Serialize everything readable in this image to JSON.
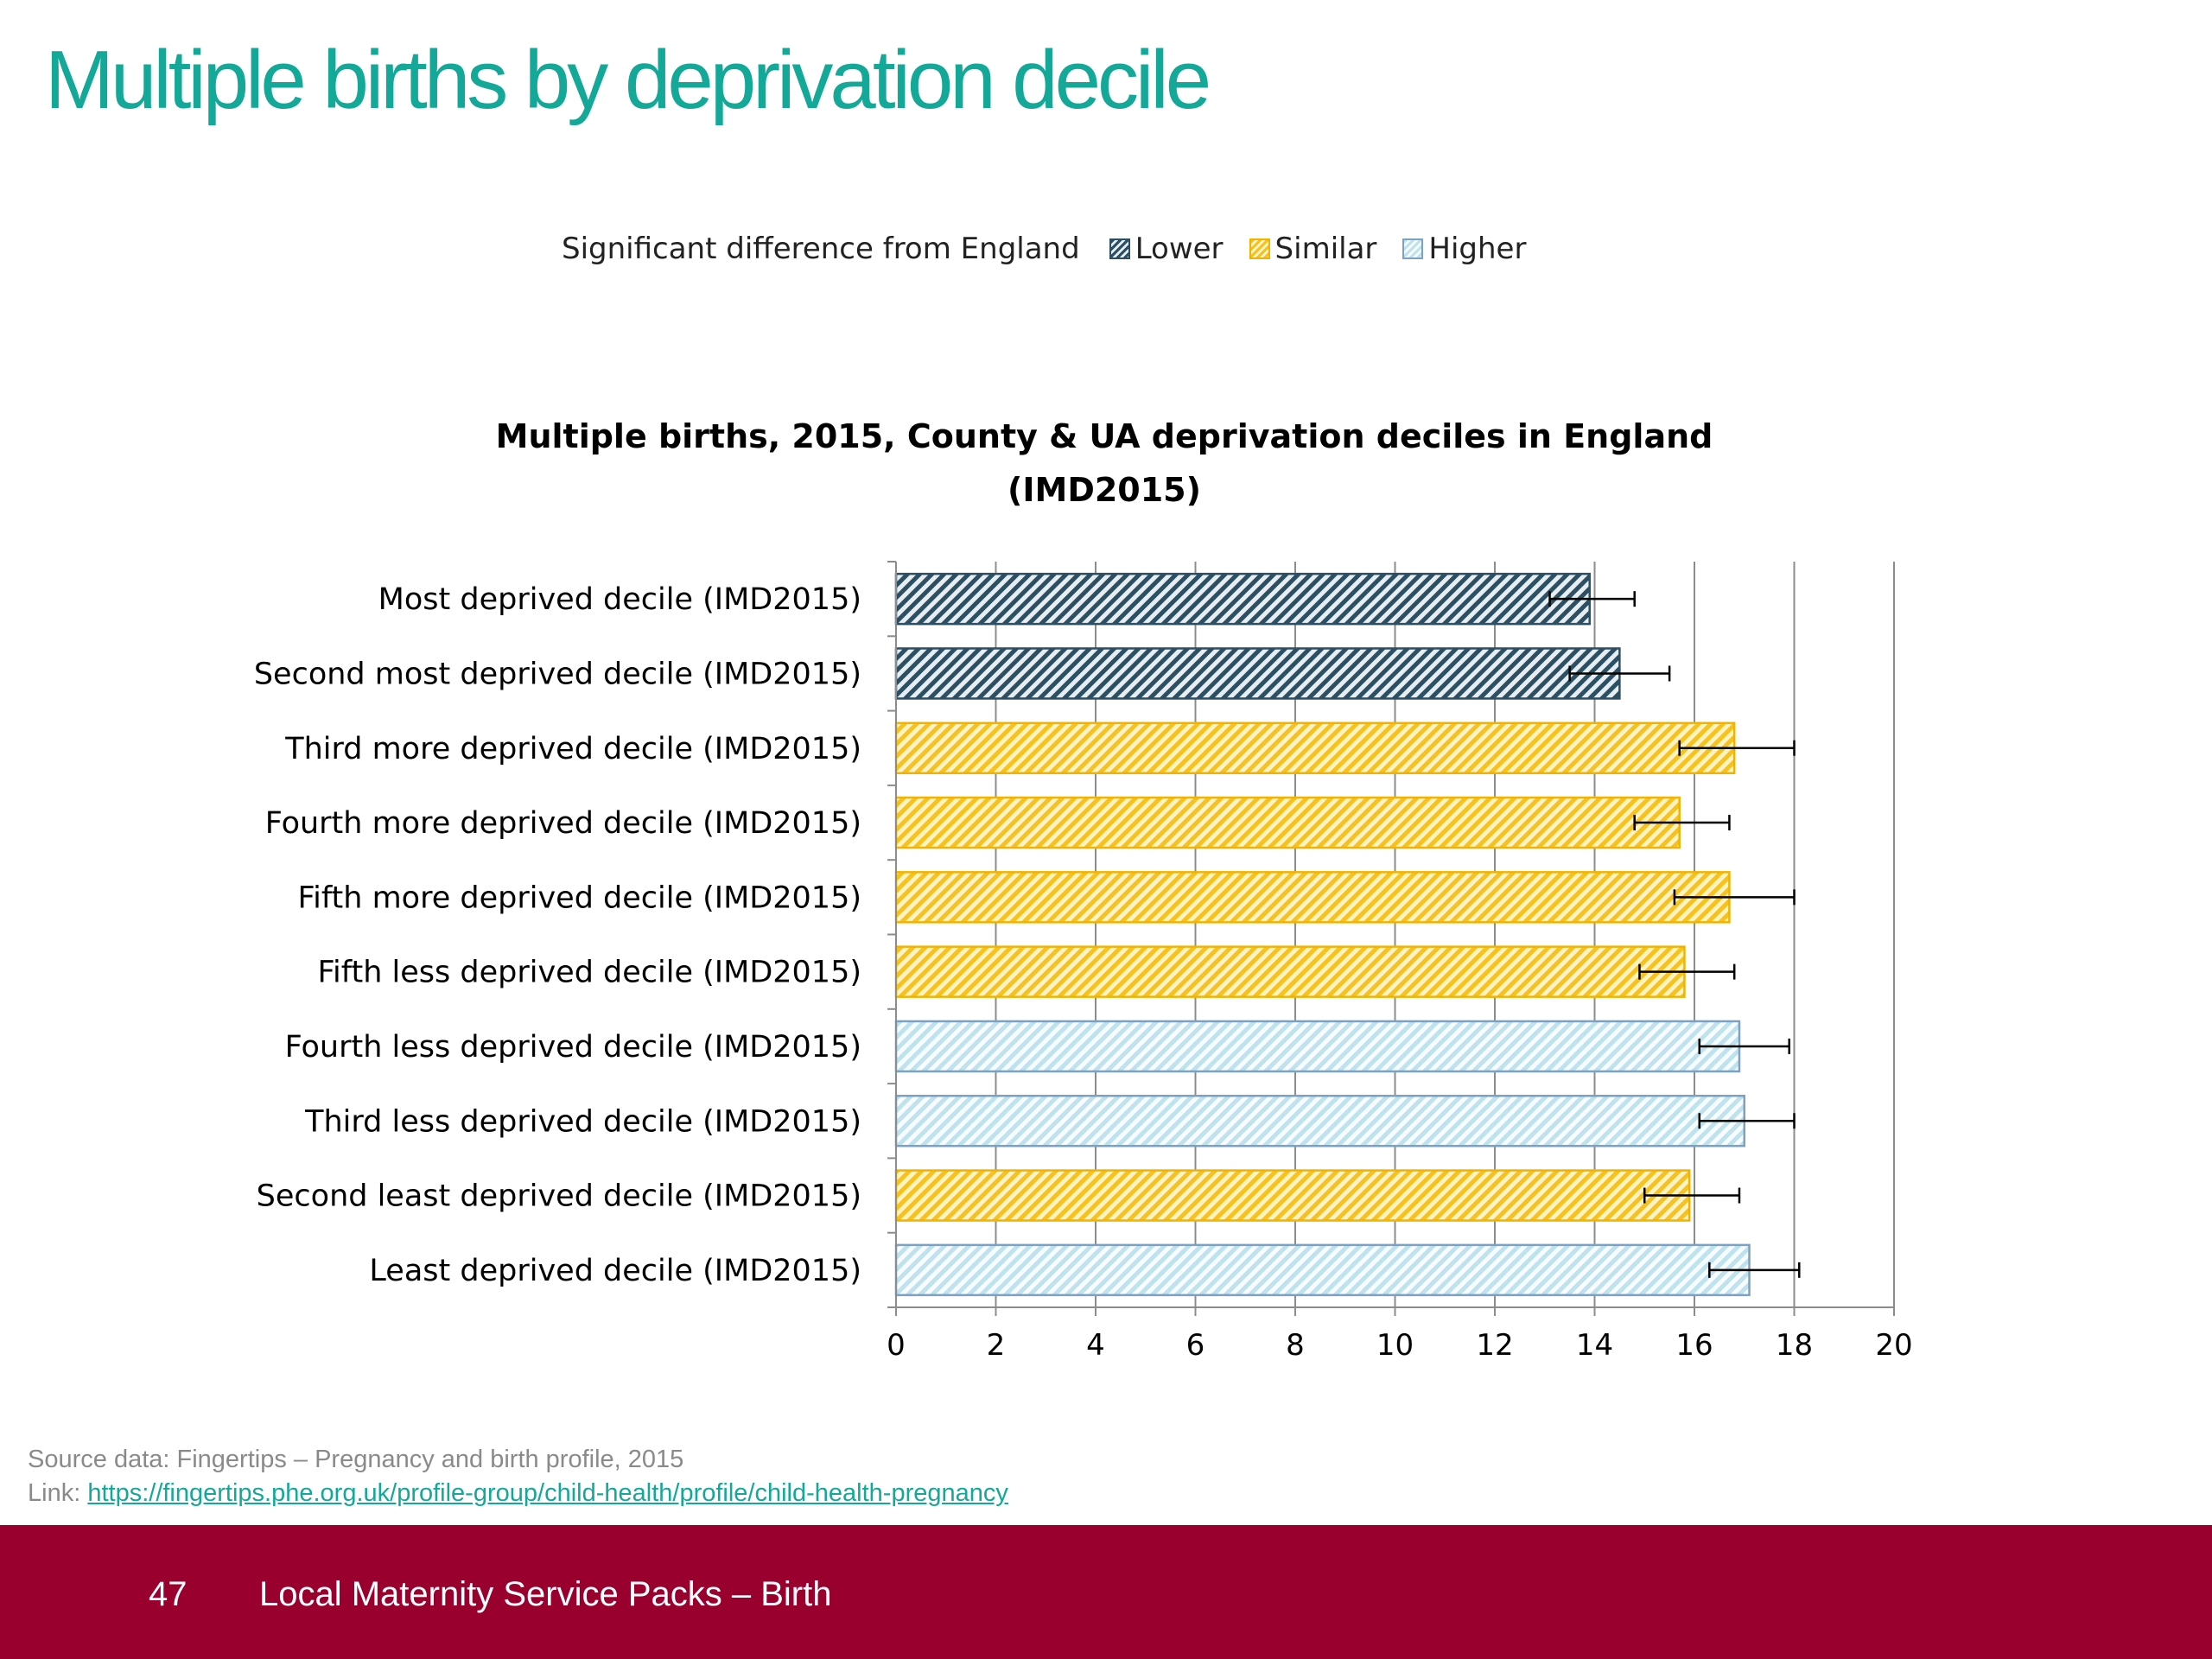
{
  "slide": {
    "title": "Multiple births by deprivation decile"
  },
  "legend": {
    "title": "Significant difference from England",
    "items": [
      {
        "label": "Lower",
        "key": "lower"
      },
      {
        "label": "Similar",
        "key": "similar"
      },
      {
        "label": "Higher",
        "key": "higher"
      }
    ]
  },
  "colors": {
    "lower": "#2c4f63",
    "similar": "#f6c21f",
    "higher": "#bfe2ee",
    "title": "#14a898",
    "footer": "#99002e"
  },
  "chart_data": {
    "type": "bar",
    "orientation": "horizontal",
    "title_lines": [
      "Multiple births, 2015, County & UA deprivation deciles in England",
      "(IMD2015)"
    ],
    "xlim": [
      0,
      20
    ],
    "x_ticks": [
      "0",
      "2",
      "4",
      "6",
      "8",
      "10",
      "12",
      "14",
      "16",
      "18",
      "20"
    ],
    "grid": true,
    "categories": [
      "Most deprived decile (IMD2015)",
      "Second most deprived decile (IMD2015)",
      "Third more deprived decile (IMD2015)",
      "Fourth more deprived decile (IMD2015)",
      "Fifth more deprived decile (IMD2015)",
      "Fifth less deprived decile (IMD2015)",
      "Fourth less deprived decile (IMD2015)",
      "Third less deprived decile (IMD2015)",
      "Second least deprived decile (IMD2015)",
      "Least deprived decile (IMD2015)"
    ],
    "values": [
      13.9,
      14.5,
      16.8,
      15.7,
      16.7,
      15.8,
      16.9,
      17.0,
      15.9,
      17.1
    ],
    "ci_lower": [
      13.1,
      13.5,
      15.7,
      14.8,
      15.6,
      14.9,
      16.1,
      16.1,
      15.0,
      16.3
    ],
    "ci_upper": [
      14.8,
      15.5,
      18.0,
      16.7,
      18.0,
      16.8,
      17.9,
      18.0,
      16.9,
      18.1
    ],
    "significance": [
      "lower",
      "lower",
      "similar",
      "similar",
      "similar",
      "similar",
      "higher",
      "higher",
      "similar",
      "higher"
    ]
  },
  "source": {
    "text": "Source data: Fingertips – Pregnancy and birth profile, 2015",
    "link_prefix": "Link: ",
    "link_text": "https://fingertips.phe.org.uk/profile-group/child-health/profile/child-health-pregnancy"
  },
  "footer": {
    "page_number": "47",
    "text": "Local Maternity Service Packs – Birth"
  }
}
